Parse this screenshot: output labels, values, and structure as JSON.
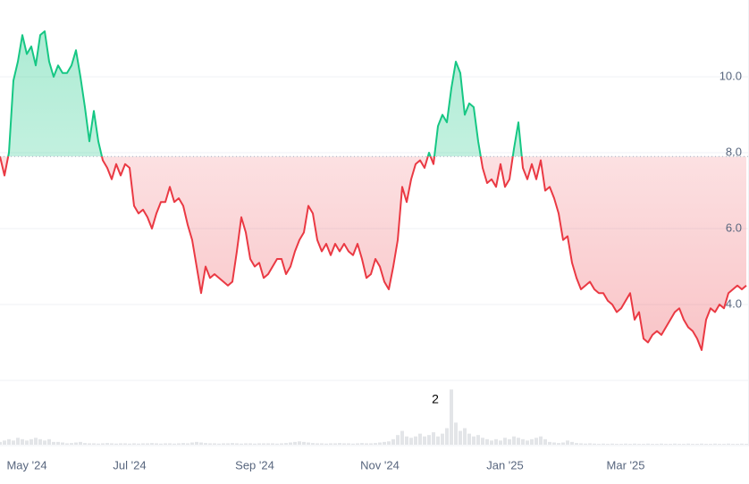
{
  "chart_data": {
    "type": "line",
    "categories": [
      null,
      null,
      null,
      null,
      null,
      null,
      "May '24",
      null,
      null,
      null,
      null,
      null,
      null,
      null,
      null,
      null,
      null,
      null,
      null,
      null,
      null,
      null,
      null,
      null,
      null,
      null,
      null,
      null,
      null,
      "Jul '24",
      null,
      null,
      null,
      null,
      null,
      null,
      null,
      null,
      null,
      null,
      null,
      null,
      null,
      null,
      null,
      null,
      null,
      null,
      null,
      null,
      null,
      null,
      null,
      null,
      null,
      null,
      null,
      "Sep '24",
      null,
      null,
      null,
      null,
      null,
      null,
      null,
      null,
      null,
      null,
      null,
      null,
      null,
      null,
      null,
      null,
      null,
      null,
      null,
      null,
      null,
      null,
      null,
      null,
      null,
      null,
      null,
      "Nov '24",
      null,
      null,
      null,
      null,
      null,
      null,
      null,
      null,
      null,
      null,
      null,
      null,
      null,
      null,
      null,
      null,
      null,
      null,
      null,
      null,
      null,
      null,
      null,
      null,
      null,
      null,
      null,
      "Jan '25",
      null,
      null,
      null,
      null,
      null,
      null,
      null,
      null,
      null,
      null,
      null,
      null,
      null,
      null,
      null,
      null,
      null,
      null,
      null,
      null,
      null,
      null,
      null,
      null,
      null,
      null,
      "Mar '25",
      null,
      null,
      null,
      null,
      null,
      null,
      null,
      null,
      null,
      null,
      null,
      null,
      null,
      null,
      null,
      null,
      null,
      null,
      null,
      null,
      null,
      null,
      null,
      null,
      null,
      null,
      null
    ],
    "values": [
      7.9,
      7.4,
      8.0,
      9.9,
      10.4,
      11.1,
      10.6,
      10.8,
      10.3,
      11.1,
      11.2,
      10.4,
      10.0,
      10.3,
      10.1,
      10.1,
      10.3,
      10.7,
      10.0,
      9.2,
      8.3,
      9.1,
      8.3,
      7.8,
      7.6,
      7.3,
      7.7,
      7.4,
      7.7,
      7.6,
      6.6,
      6.4,
      6.5,
      6.3,
      6.0,
      6.4,
      6.7,
      6.7,
      7.1,
      6.7,
      6.8,
      6.6,
      6.1,
      5.7,
      5.0,
      4.3,
      5.0,
      4.7,
      4.8,
      4.7,
      4.6,
      4.5,
      4.6,
      5.4,
      6.3,
      5.9,
      5.2,
      5.0,
      5.1,
      4.7,
      4.8,
      5.0,
      5.2,
      5.2,
      4.8,
      5.0,
      5.4,
      5.7,
      5.9,
      6.6,
      6.4,
      5.7,
      5.4,
      5.6,
      5.3,
      5.6,
      5.4,
      5.6,
      5.4,
      5.3,
      5.6,
      5.2,
      4.7,
      4.8,
      5.2,
      5.0,
      4.6,
      4.4,
      5.0,
      5.7,
      7.1,
      6.7,
      7.3,
      7.7,
      7.8,
      7.6,
      8.0,
      7.7,
      8.7,
      9.0,
      8.8,
      9.7,
      10.4,
      10.1,
      9.0,
      9.3,
      9.2,
      8.3,
      7.6,
      7.2,
      7.3,
      7.1,
      7.7,
      7.1,
      7.3,
      8.1,
      8.8,
      7.6,
      7.3,
      7.7,
      7.3,
      7.8,
      7.0,
      7.1,
      6.8,
      6.4,
      5.7,
      5.8,
      5.1,
      4.7,
      4.4,
      4.5,
      4.6,
      4.4,
      4.3,
      4.3,
      4.1,
      4.0,
      3.8,
      3.9,
      4.1,
      4.3,
      3.6,
      3.8,
      3.1,
      3.0,
      3.2,
      3.3,
      3.2,
      3.4,
      3.6,
      3.8,
      3.9,
      3.6,
      3.4,
      3.3,
      3.1,
      2.8,
      3.6,
      3.9,
      3.8,
      4.0,
      3.9,
      4.3,
      4.4,
      4.5,
      4.4,
      4.5
    ],
    "baseline": 7.9,
    "up_color": "#16c784",
    "down_color": "#ea3943",
    "ylim": [
      2,
      12
    ],
    "yticks": [
      {
        "value": 4,
        "label": "4.0"
      },
      {
        "value": 6,
        "label": "6.0"
      },
      {
        "value": 8,
        "label": "8.0"
      },
      {
        "value": 10,
        "label": "10.0"
      }
    ],
    "grid": true,
    "volume": [
      0.1,
      0.15,
      0.2,
      0.15,
      0.25,
      0.2,
      0.15,
      0.2,
      0.25,
      0.2,
      0.15,
      0.2,
      0.1,
      0.1,
      0.08,
      0.05,
      0.06,
      0.08,
      0.1,
      0.06,
      0.05,
      0.05,
      0.04,
      0.05,
      0.06,
      0.05,
      0.04,
      0.05,
      0.05,
      0.04,
      0.05,
      0.04,
      0.05,
      0.05,
      0.06,
      0.05,
      0.04,
      0.05,
      0.05,
      0.04,
      0.05,
      0.06,
      0.05,
      0.08,
      0.1,
      0.08,
      0.06,
      0.05,
      0.05,
      0.04,
      0.05,
      0.05,
      0.06,
      0.05,
      0.04,
      0.05,
      0.05,
      0.04,
      0.05,
      0.05,
      0.05,
      0.05,
      0.04,
      0.05,
      0.06,
      0.08,
      0.1,
      0.12,
      0.1,
      0.08,
      0.06,
      0.05,
      0.05,
      0.04,
      0.05,
      0.05,
      0.06,
      0.05,
      0.05,
      0.04,
      0.05,
      0.06,
      0.05,
      0.05,
      0.06,
      0.08,
      0.1,
      0.12,
      0.2,
      0.35,
      0.5,
      0.3,
      0.25,
      0.3,
      0.4,
      0.3,
      0.35,
      0.45,
      0.3,
      0.4,
      0.6,
      2.0,
      0.8,
      0.5,
      0.6,
      0.4,
      0.3,
      0.35,
      0.25,
      0.2,
      0.15,
      0.2,
      0.15,
      0.25,
      0.2,
      0.3,
      0.25,
      0.2,
      0.15,
      0.2,
      0.25,
      0.3,
      0.2,
      0.1,
      0.08,
      0.06,
      0.08,
      0.15,
      0.1,
      0.06,
      0.05,
      0.04,
      0.05,
      0.04,
      0.03,
      0.04,
      0.03,
      0.04,
      0.03,
      0.03,
      0.04,
      0.03,
      0.04,
      0.03,
      0.03,
      0.04,
      0.03,
      0.03,
      0.04,
      0.03,
      0.03,
      0.04,
      0.03,
      0.03,
      0.04,
      0.03,
      0.03,
      0.04,
      0.03,
      0.03,
      0.04,
      0.03,
      0.03,
      0.04,
      0.03,
      0.03,
      0.04,
      0.03
    ],
    "volume_color": "#e3e5e8",
    "volume_ylim": [
      0,
      2.2
    ],
    "annotation": "2"
  }
}
